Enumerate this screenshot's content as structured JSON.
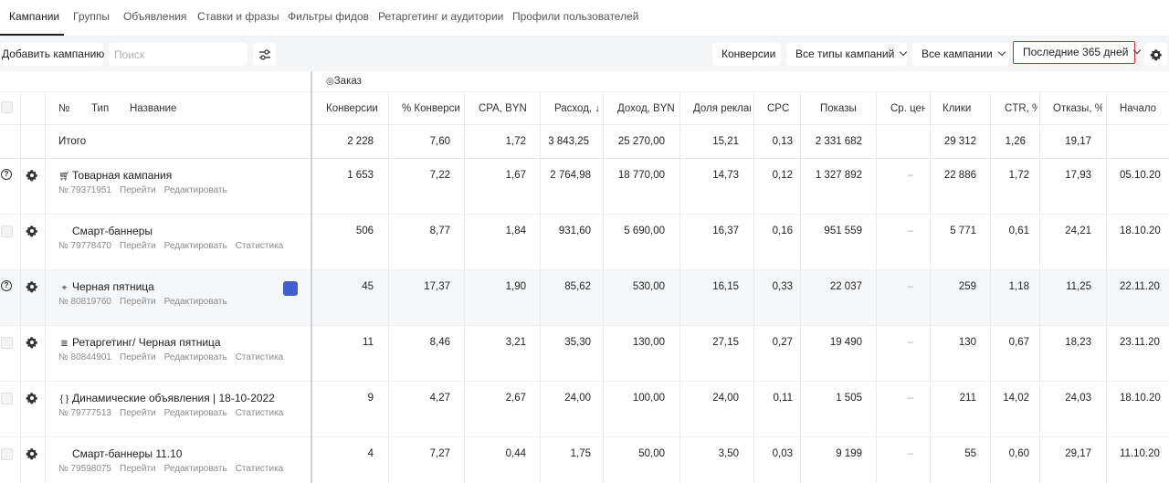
{
  "tabs": [
    "Кампании",
    "Группы",
    "Объявления",
    "Ставки и фразы",
    "Фильтры фидов",
    "Ретаргетинг и аудитории",
    "Профили пользователей"
  ],
  "toolbar": {
    "add_label": "Добавить кампанию",
    "search_placeholder": "Поиск",
    "conversions_label": "Конверсии",
    "types_label": "Все типы кампаний",
    "campaigns_label": "Все кампании",
    "period_label": "Последние 365 дней"
  },
  "table": {
    "group_label": "Заказ",
    "headers": {
      "num": "№",
      "type": "Тип",
      "name": "Название",
      "conversions": "Конверсии",
      "conv_pct": "% Конверсий",
      "cpa": "CPA, BYN",
      "spend": "Расход,",
      "revenue": "Доход, BYN",
      "ad_share": "Доля реклам",
      "cpc": "CPC",
      "impressions": "Показы",
      "avg_price": "Ср. цен",
      "clicks": "Клики",
      "ctr": "CTR, %",
      "bounces": "Отказы, %",
      "start": "Начало"
    },
    "total": {
      "label": "Итого",
      "conversions": "2 228",
      "conv_pct": "7,60",
      "cpa": "1,72",
      "spend": "3 843,25",
      "revenue": "25 270,00",
      "ad_share": "15,21",
      "cpc": "0,13",
      "impressions": "2 331 682",
      "clicks": "29 312",
      "ctr": "1,26",
      "bounces": "19,17"
    },
    "rows": [
      {
        "icon": "cart-icon",
        "name": "Товарная кампания",
        "num": "№ 79371951",
        "link_go": "Перейти",
        "link_edit": "Редактировать",
        "link_stats": "",
        "conversions": "1 653",
        "conv_pct": "7,22",
        "cpa": "1,67",
        "spend": "2 764,98",
        "revenue": "18 770,00",
        "ad_share": "14,73",
        "cpc": "0,12",
        "impressions": "1 327 892",
        "avg_price": "–",
        "clicks": "22 886",
        "ctr": "1,72",
        "bounces": "17,93",
        "start": "05.10.20"
      },
      {
        "icon": "code-icon",
        "name": "Смарт-баннеры",
        "num": "№ 79778470",
        "link_go": "Перейти",
        "link_edit": "Редактировать",
        "link_stats": "Статистика",
        "conversions": "506",
        "conv_pct": "8,77",
        "cpa": "1,84",
        "spend": "931,60",
        "revenue": "5 690,00",
        "ad_share": "16,37",
        "cpc": "0,16",
        "impressions": "951 559",
        "avg_price": "–",
        "clicks": "5 771",
        "ctr": "0,61",
        "bounces": "24,21",
        "start": "18.10.20"
      },
      {
        "icon": "cursor-icon",
        "name": "Черная пятница",
        "num": "№ 80819760",
        "link_go": "Перейти",
        "link_edit": "Редактировать",
        "link_stats": "",
        "conversions": "45",
        "conv_pct": "17,37",
        "cpa": "1,90",
        "spend": "85,62",
        "revenue": "530,00",
        "ad_share": "16,15",
        "cpc": "0,33",
        "impressions": "22 037",
        "avg_price": "–",
        "clicks": "259",
        "ctr": "1,18",
        "bounces": "11,25",
        "start": "22.11.20"
      },
      {
        "icon": "list-icon",
        "name": "Ретаргетинг/ Черная пятница",
        "num": "№ 80844901",
        "link_go": "Перейти",
        "link_edit": "Редактировать",
        "link_stats": "Статистика",
        "conversions": "11",
        "conv_pct": "8,46",
        "cpa": "3,21",
        "spend": "35,30",
        "revenue": "130,00",
        "ad_share": "27,15",
        "cpc": "0,27",
        "impressions": "19 490",
        "avg_price": "–",
        "clicks": "130",
        "ctr": "0,67",
        "bounces": "18,23",
        "start": "23.11.20"
      },
      {
        "icon": "braces-icon",
        "name": "Динамические объявления | 18-10-2022",
        "num": "№ 79777513",
        "link_go": "Перейти",
        "link_edit": "Редактировать",
        "link_stats": "Статистика",
        "conversions": "9",
        "conv_pct": "4,27",
        "cpa": "2,67",
        "spend": "24,00",
        "revenue": "100,00",
        "ad_share": "24,00",
        "cpc": "0,11",
        "impressions": "1 505",
        "avg_price": "–",
        "clicks": "211",
        "ctr": "14,02",
        "bounces": "24,03",
        "start": "18.10.20"
      },
      {
        "icon": "code-icon",
        "name": "Смарт-баннеры 11.10",
        "num": "№ 79598075",
        "link_go": "Перейти",
        "link_edit": "Редактировать",
        "link_stats": "Статистика",
        "conversions": "4",
        "conv_pct": "7,27",
        "cpa": "0,44",
        "spend": "1,75",
        "revenue": "50,00",
        "ad_share": "3,50",
        "cpc": "0,03",
        "impressions": "9 199",
        "avg_price": "–",
        "clicks": "55",
        "ctr": "0,60",
        "bounces": "29,17",
        "start": "11.10.20"
      }
    ]
  }
}
